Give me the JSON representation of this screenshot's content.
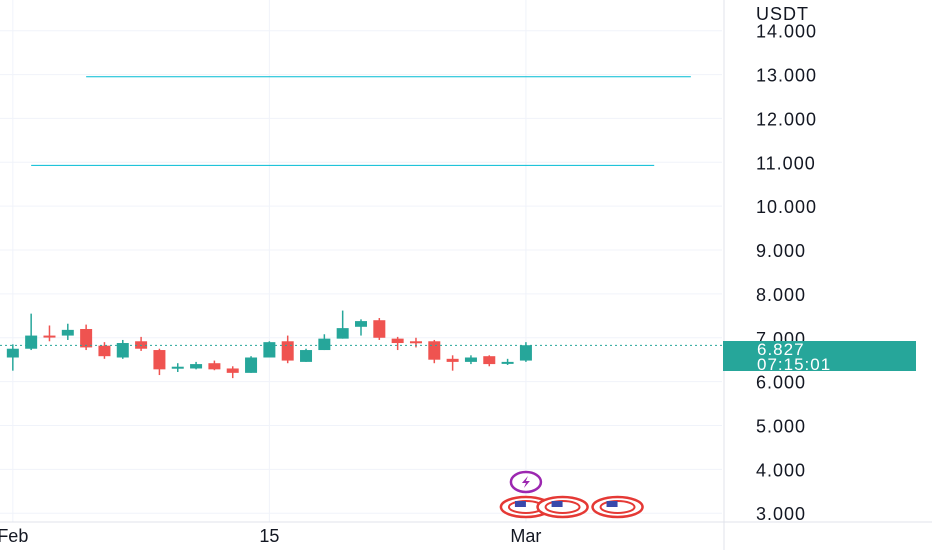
{
  "chart_data": {
    "type": "candlestick",
    "currency_label": "USDT",
    "y_ticks": [
      "14.000",
      "13.000",
      "12.000",
      "11.000",
      "10.000",
      "9.000",
      "8.000",
      "7.000",
      "6.000",
      "5.000",
      "4.000",
      "3.000"
    ],
    "y_tick_values": [
      14,
      13,
      12,
      11,
      10,
      9,
      8,
      7,
      6,
      5,
      4,
      3
    ],
    "ylim": [
      2.8,
      14.7
    ],
    "x_ticks": [
      "Feb",
      "15",
      "Mar"
    ],
    "x_tick_days": [
      1,
      15,
      29
    ],
    "xlim": [
      0.3,
      39.7
    ],
    "grid": true,
    "last_price": "6.827",
    "last_price_value": 6.827,
    "countdown": "07:15:01",
    "colors": {
      "up": "#26a69a",
      "down": "#ef5350",
      "level_line": "#00bcd4",
      "price_tag": "#26a69a",
      "grid": "#f0f3fa",
      "text": "#131722"
    },
    "levels": [
      {
        "value": 12.95,
        "from_day": 5,
        "to_day": 38
      },
      {
        "value": 10.93,
        "from_day": 2,
        "to_day": 36
      }
    ],
    "candles": [
      {
        "day": 1,
        "o": 6.55,
        "h": 6.85,
        "l": 6.25,
        "c": 6.75
      },
      {
        "day": 2,
        "o": 6.75,
        "h": 7.55,
        "l": 6.72,
        "c": 7.05
      },
      {
        "day": 3,
        "o": 7.05,
        "h": 7.28,
        "l": 6.92,
        "c": 7.02
      },
      {
        "day": 4,
        "o": 7.05,
        "h": 7.32,
        "l": 6.95,
        "c": 7.18
      },
      {
        "day": 5,
        "o": 7.2,
        "h": 7.3,
        "l": 6.72,
        "c": 6.78
      },
      {
        "day": 6,
        "o": 6.82,
        "h": 6.9,
        "l": 6.52,
        "c": 6.58
      },
      {
        "day": 7,
        "o": 6.55,
        "h": 6.95,
        "l": 6.52,
        "c": 6.88
      },
      {
        "day": 8,
        "o": 6.92,
        "h": 7.02,
        "l": 6.7,
        "c": 6.75
      },
      {
        "day": 9,
        "o": 6.72,
        "h": 6.75,
        "l": 6.15,
        "c": 6.28
      },
      {
        "day": 10,
        "o": 6.3,
        "h": 6.42,
        "l": 6.22,
        "c": 6.34
      },
      {
        "day": 11,
        "o": 6.3,
        "h": 6.45,
        "l": 6.28,
        "c": 6.4
      },
      {
        "day": 12,
        "o": 6.42,
        "h": 6.48,
        "l": 6.26,
        "c": 6.28
      },
      {
        "day": 13,
        "o": 6.3,
        "h": 6.35,
        "l": 6.08,
        "c": 6.2
      },
      {
        "day": 14,
        "o": 6.2,
        "h": 6.58,
        "l": 6.2,
        "c": 6.55
      },
      {
        "day": 15,
        "o": 6.55,
        "h": 6.92,
        "l": 6.55,
        "c": 6.9
      },
      {
        "day": 16,
        "o": 6.92,
        "h": 7.05,
        "l": 6.42,
        "c": 6.48
      },
      {
        "day": 17,
        "o": 6.45,
        "h": 6.75,
        "l": 6.45,
        "c": 6.72
      },
      {
        "day": 18,
        "o": 6.72,
        "h": 7.08,
        "l": 6.72,
        "c": 6.98
      },
      {
        "day": 19,
        "o": 6.98,
        "h": 7.62,
        "l": 6.98,
        "c": 7.22
      },
      {
        "day": 20,
        "o": 7.25,
        "h": 7.42,
        "l": 7.05,
        "c": 7.38
      },
      {
        "day": 21,
        "o": 7.4,
        "h": 7.45,
        "l": 6.95,
        "c": 7.0
      },
      {
        "day": 22,
        "o": 6.98,
        "h": 7.02,
        "l": 6.72,
        "c": 6.88
      },
      {
        "day": 23,
        "o": 6.92,
        "h": 7.0,
        "l": 6.78,
        "c": 6.9
      },
      {
        "day": 24,
        "o": 6.92,
        "h": 6.95,
        "l": 6.42,
        "c": 6.5
      },
      {
        "day": 25,
        "o": 6.52,
        "h": 6.6,
        "l": 6.25,
        "c": 6.45
      },
      {
        "day": 26,
        "o": 6.45,
        "h": 6.6,
        "l": 6.4,
        "c": 6.55
      },
      {
        "day": 27,
        "o": 6.58,
        "h": 6.6,
        "l": 6.35,
        "c": 6.4
      },
      {
        "day": 28,
        "o": 6.42,
        "h": 6.52,
        "l": 6.38,
        "c": 6.45
      },
      {
        "day": 29,
        "o": 6.48,
        "h": 6.9,
        "l": 6.45,
        "c": 6.83
      }
    ],
    "event_markers": [
      {
        "type": "lightning-event-icon",
        "day": 29,
        "row": 1
      },
      {
        "type": "us-flag-event-icon",
        "day": 29,
        "row": 2
      },
      {
        "type": "us-flag-event-icon",
        "day": 31,
        "row": 2
      },
      {
        "type": "us-flag-event-icon",
        "day": 34,
        "row": 2
      }
    ]
  }
}
